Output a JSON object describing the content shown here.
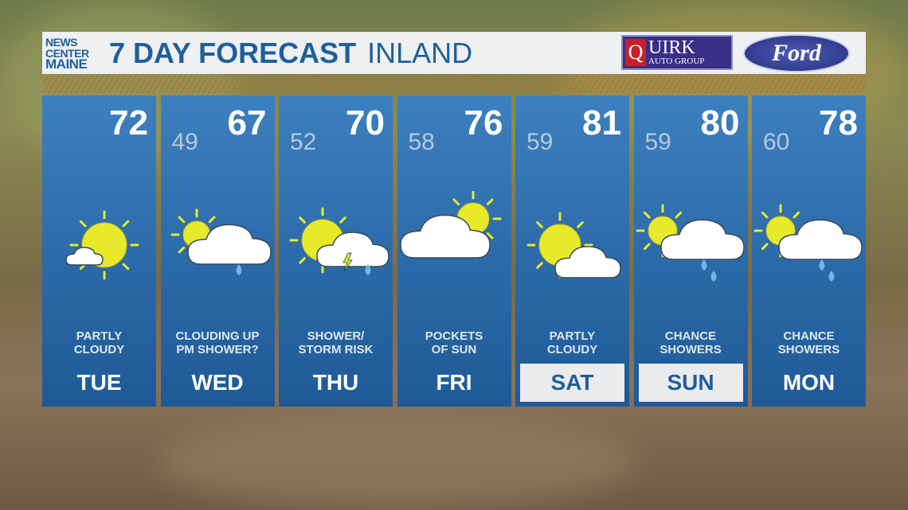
{
  "header": {
    "logo_lines": [
      "NEWS",
      "CENTER",
      "MAINE"
    ],
    "title": "7 DAY FORECAST",
    "subtitle": "INLAND",
    "sponsors": {
      "quirk_q": "Q",
      "quirk_name": "UIRK",
      "quirk_sub": "AUTO GROUP",
      "ford": "Ford"
    }
  },
  "colors": {
    "card_blue": "#2b6aa8",
    "title_blue": "#1f5f9a",
    "sun": "#e6ea2a",
    "cloud": "#ffffff",
    "rain": "#6fb7e8",
    "bolt": "#d8e83a"
  },
  "days": [
    {
      "day": "TUE",
      "high": "72",
      "low": "",
      "desc": [
        "PARTLY",
        "CLOUDY"
      ],
      "icon": "partly-cloudy-small-cloud",
      "highlight": false
    },
    {
      "day": "WED",
      "high": "67",
      "low": "49",
      "desc": [
        "CLOUDING UP",
        "PM SHOWER?"
      ],
      "icon": "sun-cloud-shower",
      "highlight": false
    },
    {
      "day": "THU",
      "high": "70",
      "low": "52",
      "desc": [
        "SHOWER/",
        "STORM RISK"
      ],
      "icon": "sun-cloud-storm",
      "highlight": false
    },
    {
      "day": "FRI",
      "high": "76",
      "low": "58",
      "desc": [
        "POCKETS",
        "OF SUN"
      ],
      "icon": "cloud-with-sun",
      "highlight": false
    },
    {
      "day": "SAT",
      "high": "81",
      "low": "59",
      "desc": [
        "PARTLY",
        "CLOUDY"
      ],
      "icon": "partly-cloudy",
      "highlight": true
    },
    {
      "day": "SUN",
      "high": "80",
      "low": "59",
      "desc": [
        "CHANCE",
        "SHOWERS"
      ],
      "icon": "sun-cloud-rain",
      "highlight": true
    },
    {
      "day": "MON",
      "high": "78",
      "low": "60",
      "desc": [
        "CHANCE",
        "SHOWERS"
      ],
      "icon": "sun-cloud-rain",
      "highlight": false
    }
  ]
}
